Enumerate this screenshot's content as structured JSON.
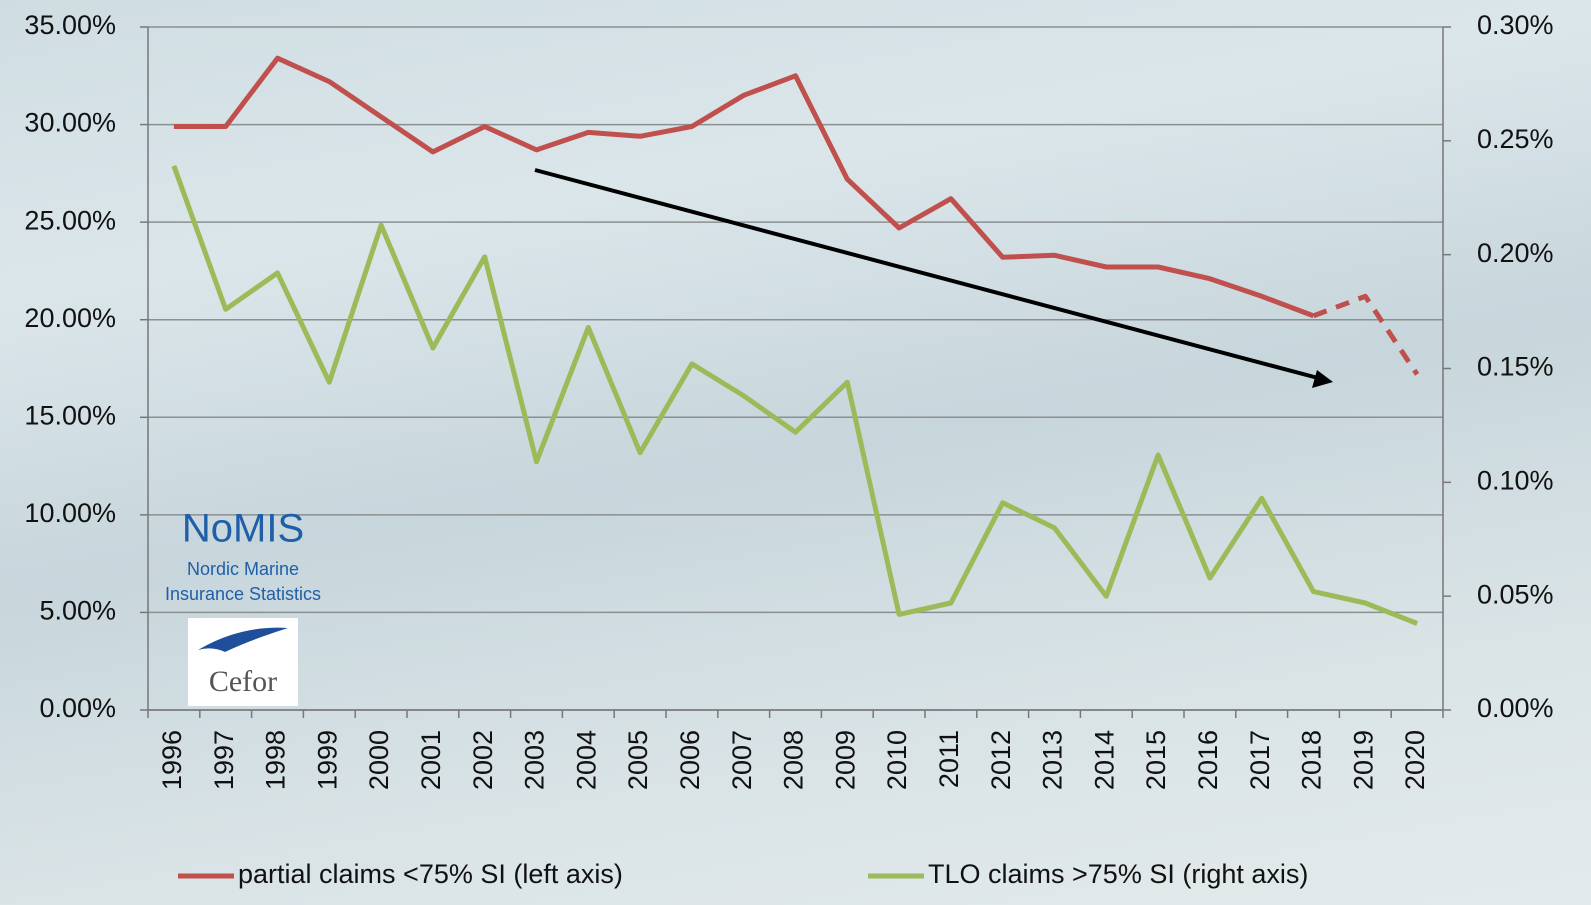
{
  "chart_data": {
    "type": "line",
    "categories": [
      "1996",
      "1997",
      "1998",
      "1999",
      "2000",
      "2001",
      "2002",
      "2003",
      "2004",
      "2005",
      "2006",
      "2007",
      "2008",
      "2009",
      "2010",
      "2011",
      "2012",
      "2013",
      "2014",
      "2015",
      "2016",
      "2017",
      "2018",
      "2019",
      "2020"
    ],
    "series": [
      {
        "name": "partial claims <75% SI (left axis)",
        "color": "#c0504d",
        "axis": "y",
        "dashed_from": "2018",
        "values": [
          29.9,
          29.9,
          33.4,
          32.2,
          30.4,
          28.6,
          29.9,
          28.7,
          29.6,
          29.4,
          29.9,
          31.5,
          32.5,
          27.2,
          24.7,
          26.2,
          23.2,
          23.3,
          22.7,
          22.7,
          22.1,
          21.2,
          20.2,
          21.2,
          17.2
        ]
      },
      {
        "name": "TLO claims >75% SI (right axis)",
        "color": "#9bbb59",
        "axis": "y2",
        "values": [
          0.239,
          0.176,
          0.192,
          0.144,
          0.213,
          0.159,
          0.199,
          0.109,
          0.168,
          0.113,
          0.152,
          0.138,
          0.122,
          0.144,
          0.042,
          0.047,
          0.091,
          0.08,
          0.05,
          0.112,
          0.058,
          0.093,
          0.052,
          0.047,
          0.038
        ]
      }
    ],
    "ylim": [
      0,
      35
    ],
    "yticks": [
      {
        "value": 0,
        "label": "0.00%"
      },
      {
        "value": 5,
        "label": "5.00%"
      },
      {
        "value": 10,
        "label": "10.00%"
      },
      {
        "value": 15,
        "label": "15.00%"
      },
      {
        "value": 20,
        "label": "20.00%"
      },
      {
        "value": 25,
        "label": "25.00%"
      },
      {
        "value": 30,
        "label": "30.00%"
      },
      {
        "value": 35,
        "label": "35.00%"
      }
    ],
    "y2lim": [
      0,
      0.3
    ],
    "y2ticks": [
      {
        "value": 0,
        "label": "0.00%"
      },
      {
        "value": 0.05,
        "label": "0.05%"
      },
      {
        "value": 0.1,
        "label": "0.10%"
      },
      {
        "value": 0.15,
        "label": "0.15%"
      },
      {
        "value": 0.2,
        "label": "0.20%"
      },
      {
        "value": 0.25,
        "label": "0.25%"
      },
      {
        "value": 0.3,
        "label": "0.30%"
      }
    ],
    "grid": true,
    "legend": "bottom"
  },
  "logo": {
    "title": "NoMIS",
    "subtitle": [
      "Nordic Marine",
      "Insurance Statistics"
    ],
    "brand": "Cefor"
  }
}
